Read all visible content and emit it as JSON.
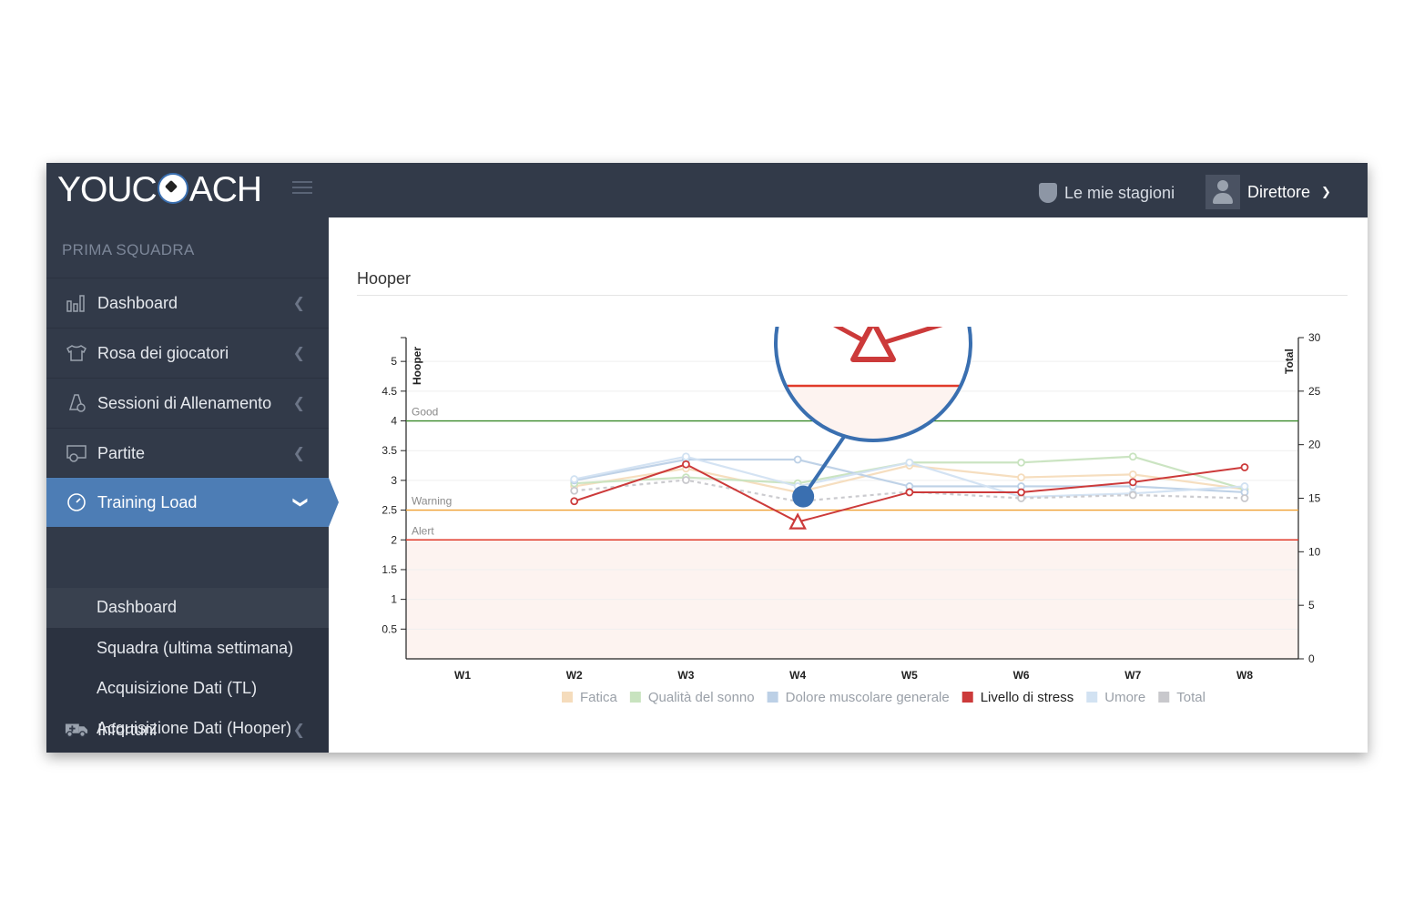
{
  "app": {
    "logo": "YOUCOACH",
    "seasons_label": "Le mie stagioni",
    "user_label": "Direttore"
  },
  "sidebar": {
    "section_title": "PRIMA SQUADRA",
    "items": [
      {
        "label": "Dashboard",
        "icon": "bar-chart-icon"
      },
      {
        "label": "Rosa dei giocatori",
        "icon": "jersey-icon"
      },
      {
        "label": "Sessioni di Allenamento",
        "icon": "cone-icon"
      },
      {
        "label": "Partite",
        "icon": "goal-icon"
      },
      {
        "label": "Training Load",
        "icon": "gauge-icon"
      },
      {
        "label": "Infortuni",
        "icon": "ambulance-icon"
      }
    ],
    "subitems": [
      {
        "label": "Dashboard"
      },
      {
        "label": "Squadra (ultima settimana)"
      },
      {
        "label": "Acquisizione Dati (TL)"
      },
      {
        "label": "Acquisizione Dati (Hooper)"
      }
    ]
  },
  "main": {
    "title": "Hooper"
  },
  "chart_data": {
    "type": "line",
    "categories": [
      "W1",
      "W2",
      "W3",
      "W4",
      "W5",
      "W6",
      "W7",
      "W8"
    ],
    "y_left": {
      "label": "Hooper",
      "ylim": [
        0,
        5.4
      ],
      "ticks": [
        "0.5",
        "1",
        "1.5",
        "2",
        "2.5",
        "3",
        "3.5",
        "4",
        "4.5",
        "5"
      ]
    },
    "y_right": {
      "label": "Total",
      "ylim": [
        0,
        30
      ],
      "ticks": [
        "0",
        "5",
        "10",
        "15",
        "20",
        "25",
        "30"
      ]
    },
    "thresholds": [
      {
        "label": "Good",
        "value": 4,
        "color": "#3a8a2a"
      },
      {
        "label": "Warning",
        "value": 2.5,
        "color": "#f0a030"
      },
      {
        "label": "Alert",
        "value": 2,
        "color": "#e03a2a"
      }
    ],
    "series": [
      {
        "name": "Fatica",
        "color": "#f5dcbc",
        "axis": "left",
        "values": [
          null,
          2.9,
          3.2,
          2.8,
          3.25,
          3.05,
          3.1,
          2.85
        ],
        "active": false
      },
      {
        "name": "Qualità del sonno",
        "color": "#c8e3bf",
        "axis": "left",
        "values": [
          null,
          2.95,
          3.05,
          2.95,
          3.3,
          3.3,
          3.4,
          2.85
        ],
        "active": false
      },
      {
        "name": "Dolore muscolare generale",
        "color": "#bcd0e6",
        "axis": "left",
        "values": [
          null,
          3.0,
          3.35,
          3.35,
          2.9,
          2.9,
          2.9,
          2.8
        ],
        "active": false
      },
      {
        "name": "Livello di stress",
        "color": "#cc3a3a",
        "axis": "left",
        "values": [
          null,
          2.65,
          3.27,
          2.3,
          2.8,
          2.8,
          2.97,
          3.22
        ],
        "active": true
      },
      {
        "name": "Umore",
        "color": "#d2e2f2",
        "axis": "left",
        "values": [
          null,
          3.02,
          3.4,
          2.9,
          3.3,
          2.72,
          2.78,
          2.9
        ],
        "active": false
      },
      {
        "name": "Total",
        "color": "#c8c8cc",
        "axis": "right",
        "values": [
          null,
          15.7,
          16.7,
          14.7,
          15.6,
          15.0,
          15.3,
          15.0
        ],
        "active": false,
        "dashed": true
      }
    ],
    "legend_position": "bottom"
  }
}
